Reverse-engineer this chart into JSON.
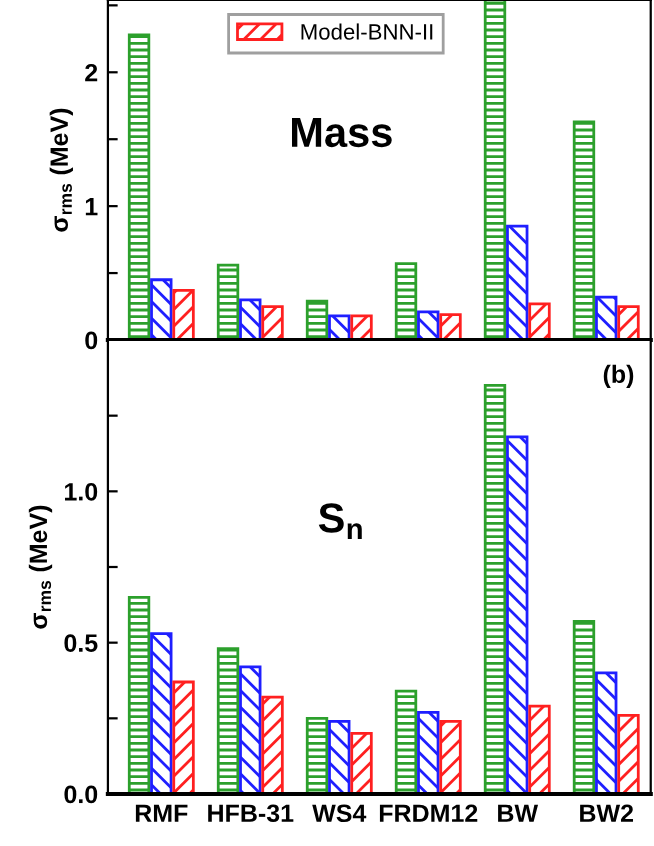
{
  "chart_data": [
    {
      "type": "bar",
      "ylabel": "σ$_{rms}$ (MeV)",
      "annotations": [
        "Mass"
      ],
      "series": [
        {
          "color": "#2ca02c",
          "values": [
            2.28,
            0.56,
            0.29,
            0.57,
            2.54,
            1.63
          ]
        },
        {
          "color": "#1f1fff",
          "values": [
            0.45,
            0.3,
            0.18,
            0.21,
            0.85,
            0.32
          ]
        },
        {
          "name": "Model-BNN-II",
          "color": "#ff2020",
          "values": [
            0.37,
            0.25,
            0.18,
            0.19,
            0.27,
            0.25
          ]
        }
      ],
      "ylim": [
        0,
        2.54
      ],
      "yticks": [
        0,
        {
          "value": 0.5,
          "label": null
        },
        1,
        {
          "value": 1.5,
          "label": null
        },
        2,
        {
          "value": 2.5,
          "label": null
        }
      ],
      "tick_labels": "y",
      "legend": "top",
      "grid": false
    },
    {
      "type": "bar",
      "categories": [
        "RMF",
        "HFB-31",
        "WS4",
        "FRDM12",
        "BW",
        "BW2"
      ],
      "ylabel": "σ$_{rms}$ (MeV)",
      "annotations": [
        "S$_{n}$",
        "(b)"
      ],
      "series": [
        {
          "color": "#2ca02c",
          "values": [
            0.65,
            0.48,
            0.25,
            0.34,
            1.35,
            0.57
          ]
        },
        {
          "color": "#1f1fff",
          "values": [
            0.53,
            0.42,
            0.24,
            0.27,
            1.18,
            0.4
          ]
        },
        {
          "color": "#ff2020",
          "values": [
            0.37,
            0.32,
            0.2,
            0.24,
            0.29,
            0.26
          ]
        }
      ],
      "ylim": [
        0,
        1.5
      ],
      "yticks": [
        {
          "value": 0.0,
          "label": "0.0"
        },
        {
          "value": 0.25,
          "label": null
        },
        {
          "value": 0.5,
          "label": "0.5"
        },
        {
          "value": 0.75,
          "label": null
        },
        {
          "value": 1.0,
          "label": "1.0"
        },
        {
          "value": 1.25,
          "label": null
        }
      ],
      "grid": false
    }
  ]
}
